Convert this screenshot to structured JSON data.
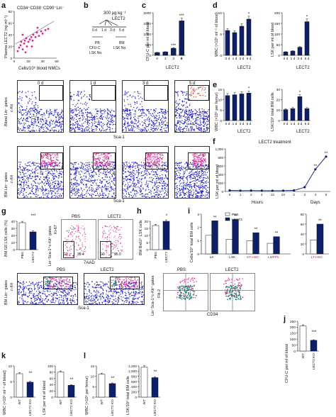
{
  "panels": [
    "a",
    "b",
    "c",
    "d",
    "e",
    "f",
    "g",
    "h",
    "i",
    "j",
    "k",
    "l"
  ],
  "a": {
    "legend": "CD34⁺CD38⁻CD90⁺Lin⁻",
    "ylabel": "Plasma LECT2 (ng ml⁻¹)",
    "xlabel": "Cells/10⁶ blood NMCs",
    "yticks": [
      "0",
      "20",
      "40",
      "60",
      "80"
    ],
    "xticks": [
      "0",
      "20",
      "40",
      "60"
    ]
  },
  "b": {
    "dose": "300 μg kg⁻¹",
    "drug": "LECT2",
    "days": [
      "0 d",
      "1 d",
      "3 d",
      "5 d"
    ],
    "pb": "PB",
    "cfuc": "CFU-C",
    "lskno": "LSK No.",
    "bm": "BM",
    "bmlsk": "LSK No."
  },
  "c": {
    "ylabel": "CFU-C per ml of blood",
    "xlabel": "LECT2",
    "yticks": [
      "0",
      "500",
      "1000",
      "1500",
      "2000"
    ],
    "x": [
      "0",
      "1",
      "3",
      "5"
    ],
    "x_unit": "d",
    "values": [
      130,
      160,
      330,
      1620
    ],
    "stars": [
      "",
      "",
      "***",
      "***"
    ]
  },
  "d": {
    "ylabel1": "WBC (×10⁶ ml⁻¹ of blood)",
    "ylabel2": "LSK per ml of blood",
    "xlabel": "LECT2",
    "x": [
      "0 d",
      "1 d",
      "3 d",
      "5 d"
    ],
    "yticks1": [
      "0",
      "5",
      "10"
    ],
    "yticks2": [
      "0",
      "50",
      "100",
      "150",
      "200"
    ],
    "v1": [
      7.0,
      6.4,
      8.2,
      10.2
    ],
    "v2": [
      16,
      20,
      38,
      158
    ],
    "stars1": [
      "",
      "",
      "",
      "*"
    ],
    "stars2": [
      "",
      "",
      "",
      "*"
    ]
  },
  "row_labels": {
    "blood": "Blood Lin⁻ gates",
    "bm": "BM Lin⁻ gates",
    "ckit": "c-Kit",
    "sca1": "Sca-1"
  },
  "flow_times": [
    "0 d",
    "1 d",
    "3 d",
    "5 d"
  ],
  "e": {
    "ylabel1": "WBC (×10⁶ per femur)",
    "ylabel2": "LSK/10⁴ total BM cells",
    "xlabel": "LECT2",
    "x": [
      "0 d",
      "1 d",
      "3 d",
      "5 d"
    ],
    "yticks1": [
      "0",
      "5",
      "10",
      "15"
    ],
    "yticks2": [
      "0",
      "10",
      "20",
      "30"
    ],
    "v1": [
      12,
      12.4,
      12.8,
      13.2
    ],
    "v2": [
      10.5,
      11.5,
      23,
      11.5
    ],
    "stars1": [
      "",
      "",
      "",
      "*"
    ],
    "stars2": [
      "",
      "",
      "*",
      ""
    ]
  },
  "f": {
    "title": "LECT2 treatment",
    "ylabel": "LSK per ml of blood",
    "yticks": [
      "0",
      "200",
      "400",
      "600",
      "800",
      "1,000"
    ],
    "x": [
      "0",
      "1",
      "2",
      "4",
      "12",
      "24",
      "2",
      "3",
      "4",
      "5"
    ],
    "values": [
      25,
      20,
      22,
      20,
      18,
      20,
      25,
      100,
      520,
      820
    ],
    "stars": [
      "",
      "",
      "",
      "",
      "",
      "",
      "",
      "",
      "**",
      "**"
    ],
    "hours": "Hours",
    "days": "Days"
  },
  "g": {
    "ylabel": "BM G0 LSK cells (%)",
    "x": [
      "PBS",
      "LECT2"
    ],
    "values": [
      38,
      25
    ],
    "yticks": [
      "0",
      "10",
      "20",
      "30",
      "40"
    ],
    "stars": "***",
    "flow_titles": [
      "PBS",
      "LECT2"
    ],
    "ki67": "Ki-67",
    "aad": "7AAD",
    "g0": "G0",
    "pct": [
      "39.4",
      "25.0"
    ],
    "side": "Lin⁻Sca-1⁺c-Kit⁺ gates"
  },
  "h": {
    "ylabel": "BM BrdU⁺ LSK cells",
    "x": [
      "PBS",
      "LECT2"
    ],
    "values": [
      17,
      20
    ],
    "yticks": [
      "0",
      "5",
      "10",
      "15",
      "20"
    ],
    "stars": "*"
  },
  "i": {
    "ylabel": "Cells/10⁴ total BM cells",
    "legend": [
      "PBS",
      "LECT2"
    ],
    "categories": [
      "LK",
      "LSK",
      "ST-HSC",
      "LMPPs",
      "LT-HSC"
    ],
    "pbs": [
      1.4,
      1.1,
      1.0,
      0.8,
      0.7
    ],
    "lect2": [
      2.5,
      2.6,
      1.6,
      1.3,
      1.2
    ],
    "stars": [
      "**",
      "**",
      "**",
      "**",
      "**"
    ],
    "yticks": [
      "0",
      "1",
      "2",
      "3"
    ],
    "lt_hsc": {
      "pbs": 28,
      "lect2": 60
    },
    "lt_yticks": [
      "0",
      "20",
      "40",
      "60",
      "80"
    ]
  },
  "bottom_flow": {
    "titles": [
      "PBS",
      "LECT2"
    ],
    "ckit": "c-Kit",
    "sca1": "Sca-1",
    "bm": "BM Lin⁻ gates",
    "side": "Lin⁻Sca-1⁺c-Kit⁺ gates",
    "flk2": "Flk-2",
    "cd34": "CD34"
  },
  "j": {
    "ylabel": "CFU-C per ml of blood",
    "x": [
      "WT",
      "LECT2 KO"
    ],
    "values": [
      210,
      90
    ],
    "yticks": [
      "0",
      "50",
      "100",
      "150",
      "200",
      "250"
    ],
    "stars": "***"
  },
  "k": {
    "ylabel1": "WBC (×10⁶ ml⁻¹ of blood)",
    "ylabel2": "LSK per ml of blood",
    "x": [
      "WT",
      "LECT2 KO"
    ],
    "v1": [
      7.5,
      4.8
    ],
    "v2": [
      80,
      38
    ],
    "yticks1": [
      "0",
      "5",
      "10"
    ],
    "yticks2": [
      "0",
      "20",
      "40",
      "60",
      "80",
      "100"
    ],
    "stars": "**"
  },
  "l": {
    "ylabel1": "WBC (×10⁶ per femur)",
    "ylabel2": "LSK/10⁴ total BM cells",
    "x": [
      "WT",
      "LECT2 KO"
    ],
    "v1": [
      11,
      6.5
    ],
    "v2": [
      1150,
      750
    ],
    "yticks1": [
      "0",
      "5",
      "10",
      "15"
    ],
    "yticks2": [
      "0",
      "200",
      "400",
      "600",
      "800",
      "1,000",
      "1,200"
    ],
    "stars": "**"
  },
  "colors": {
    "navy": "#0b1f6b",
    "magenta": "#e0218a",
    "blue": "#1a1adb",
    "teal": "#1a8a7a",
    "white": "#ffffff"
  }
}
